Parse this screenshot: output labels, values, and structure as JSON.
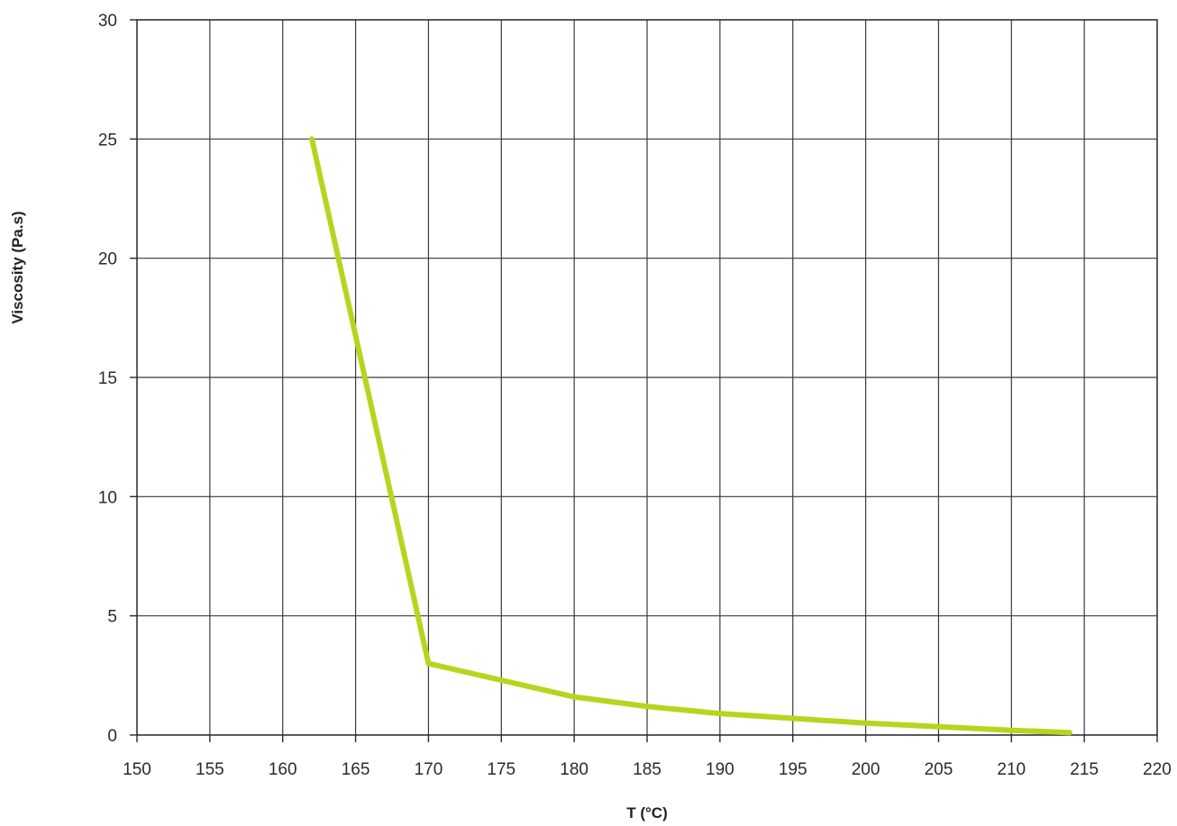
{
  "chart_data": {
    "type": "line",
    "title": "",
    "xlabel": "T (°C)",
    "ylabel": "Viscosity (Pa.s)",
    "xlim": [
      150,
      220
    ],
    "ylim": [
      0,
      30
    ],
    "x_ticks": [
      150,
      155,
      160,
      165,
      170,
      175,
      180,
      185,
      190,
      195,
      200,
      205,
      210,
      215,
      220
    ],
    "y_ticks": [
      0,
      5,
      10,
      15,
      20,
      25,
      30
    ],
    "grid": true,
    "legend": "none",
    "series": [
      {
        "color": "#b6d51e",
        "x": [
          162,
          170,
          175,
          180,
          185,
          190,
          195,
          200,
          205,
          210,
          214
        ],
        "y": [
          25,
          3,
          2.3,
          1.6,
          1.2,
          0.9,
          0.7,
          0.5,
          0.35,
          0.2,
          0.1
        ]
      }
    ]
  }
}
